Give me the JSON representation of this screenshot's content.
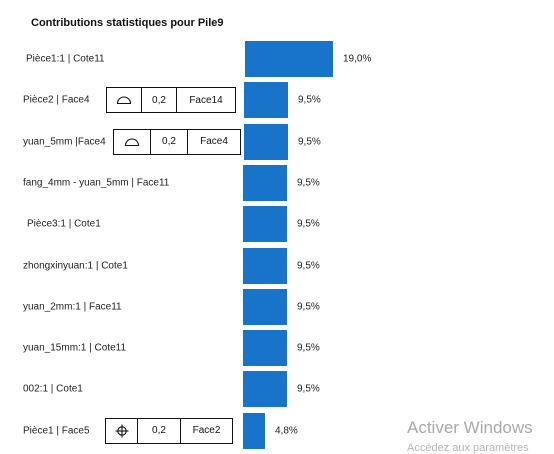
{
  "page": {
    "watermark": "Activer Windows",
    "watermark_sub": "Accédez aux paramètres"
  },
  "chart_data": {
    "type": "bar",
    "orientation": "horizontal",
    "title": "Contributions statistiques pour Pile9",
    "categories": [
      "Pièce1:1 | Cote11",
      "Pièce2 | Face4",
      "yuan_5mm |Face4",
      "fang_4mm - yuan_5mm  | Face11",
      "Pièce3:1 | Cote1",
      "zhongxinyuan:1 | Cote1",
      "yuan_2mm:1 | Face11",
      "yuan_15mm:1 | Cote11",
      "002:1 | Cote1",
      "Pièce1 | Face5"
    ],
    "values": [
      19.0,
      9.5,
      9.5,
      9.5,
      9.5,
      9.5,
      9.5,
      9.5,
      9.5,
      4.8
    ],
    "value_labels": [
      "19,0%",
      "9,5%",
      "9,5%",
      "9,5%",
      "9,5%",
      "9,5%",
      "9,5%",
      "9,5%",
      "9,5%",
      "4,8%"
    ],
    "bar_color": "#1874c8",
    "xlabel": "",
    "ylabel": "",
    "grid": false,
    "legend": "none",
    "tolerance_frames": [
      null,
      {
        "symbol": "profile-surface-icon",
        "value": "0,2",
        "datum": "Face14"
      },
      {
        "symbol": "profile-surface-icon",
        "value": "0,2",
        "datum": "Face4"
      },
      null,
      null,
      null,
      null,
      null,
      null,
      {
        "symbol": "position-icon",
        "value": "0,2",
        "datum": "Face2"
      }
    ]
  }
}
